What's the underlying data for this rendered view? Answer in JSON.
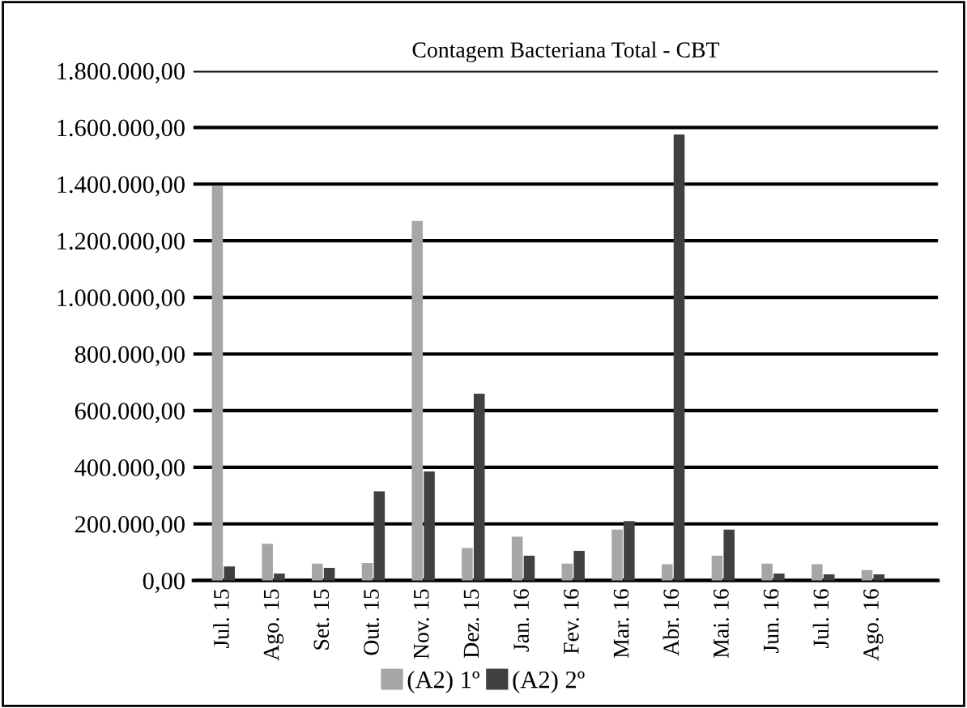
{
  "chart_data": {
    "type": "bar",
    "title": "Contagem Bacteriana Total - CBT",
    "categories": [
      "Jul. 15",
      "Ago. 15",
      "Set. 15",
      "Out. 15",
      "Nov. 15",
      "Dez. 15",
      "Jan. 16",
      "Fev. 16",
      "Mar. 16",
      "Abr. 16",
      "Mai. 16",
      "Jun. 16",
      "Jul. 16",
      "Ago. 16"
    ],
    "series": [
      {
        "name": "(A2) 1º",
        "color": "#a6a6a6",
        "values": [
          1395000,
          130000,
          60000,
          62000,
          1270000,
          115000,
          155000,
          60000,
          180000,
          58000,
          88000,
          60000,
          58000,
          37000
        ]
      },
      {
        "name": "(A2) 2º",
        "color": "#404040",
        "values": [
          50000,
          25000,
          45000,
          315000,
          385000,
          660000,
          88000,
          105000,
          210000,
          1575000,
          180000,
          25000,
          22000,
          22000
        ]
      }
    ],
    "ylim": [
      0,
      1800000
    ],
    "yticks": [
      {
        "value": 0,
        "label": "0,00"
      },
      {
        "value": 200000,
        "label": "200.000,00"
      },
      {
        "value": 400000,
        "label": "400.000,00"
      },
      {
        "value": 600000,
        "label": "600.000,00"
      },
      {
        "value": 800000,
        "label": "800.000,00"
      },
      {
        "value": 1000000,
        "label": "1.000.000,00"
      },
      {
        "value": 1200000,
        "label": "1.200.000,00"
      },
      {
        "value": 1400000,
        "label": "1.400.000,00"
      },
      {
        "value": 1600000,
        "label": "1.600.000,00"
      },
      {
        "value": 1800000,
        "label": "1.800.000,00"
      }
    ],
    "grid": "y",
    "legend": "bottom"
  }
}
